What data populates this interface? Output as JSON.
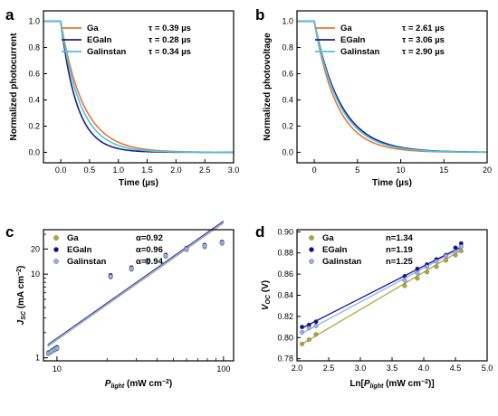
{
  "colors": {
    "ga": "#E8763A",
    "egain": "#1B1F8A",
    "galinstan": "#4FC3D9",
    "ga_c": "#B5A53B",
    "egain_c": "#0E0E9E",
    "galinstan_c": "#8FB2F0"
  },
  "chart_data": [
    {
      "panel_label": "a",
      "type": "line",
      "xlabel": "Time (µs)",
      "ylabel": "Normalized photocurrent",
      "xlim": [
        -0.3,
        3.0
      ],
      "ylim": [
        -0.08,
        1.08
      ],
      "xticks": [
        0.0,
        0.5,
        1.0,
        1.5,
        2.0,
        2.5,
        3.0
      ],
      "xtick_labels": [
        "0.0",
        "0.5",
        "1.0",
        "1.5",
        "2.0",
        "2.5",
        "3.0"
      ],
      "yticks": [
        0.0,
        0.2,
        0.4,
        0.6,
        0.8,
        1.0
      ],
      "ytick_labels": [
        "0.0",
        "0.2",
        "0.4",
        "0.6",
        "0.8",
        "1.0"
      ],
      "plateau_start": -0.3,
      "decay_start": 0.0,
      "series": [
        {
          "name": "Ga",
          "tau_label": "τ = 0.39 µs",
          "tau": 0.39,
          "color": "#E8763A"
        },
        {
          "name": "EGaIn",
          "tau_label": "τ = 0.28 µs",
          "tau": 0.28,
          "color": "#1B1F8A"
        },
        {
          "name": "Galinstan",
          "tau_label": "τ = 0.34 µs",
          "tau": 0.34,
          "color": "#4FC3D9"
        }
      ]
    },
    {
      "panel_label": "b",
      "type": "line",
      "xlabel": "Time (µs)",
      "ylabel": "Normalized photovoltage",
      "xlim": [
        -2,
        20
      ],
      "ylim": [
        -0.08,
        1.08
      ],
      "xticks": [
        0,
        5,
        10,
        15,
        20
      ],
      "xtick_labels": [
        "0",
        "5",
        "10",
        "15",
        "20"
      ],
      "yticks": [
        0.0,
        0.2,
        0.4,
        0.6,
        0.8,
        1.0
      ],
      "ytick_labels": [
        "0.0",
        "0.2",
        "0.4",
        "0.6",
        "0.8",
        "1.0"
      ],
      "plateau_start": -2,
      "decay_start": 0,
      "series": [
        {
          "name": "Ga",
          "tau_label": "τ = 2.61 µs",
          "tau": 2.61,
          "color": "#E8763A"
        },
        {
          "name": "EGaIn",
          "tau_label": "τ = 3.06 µs",
          "tau": 3.06,
          "color": "#1B1F8A"
        },
        {
          "name": "Galinstan",
          "tau_label": "τ = 2.90 µs",
          "tau": 2.9,
          "color": "#4FC3D9"
        }
      ]
    },
    {
      "panel_label": "c",
      "type": "scatter",
      "log_log": true,
      "xlabel_main": "P",
      "xlabel_sub": "light",
      "xlabel_unit": " (mW cm",
      "xlabel_sup": "−2",
      "xlabel_end": ")",
      "ylabel_main": "J",
      "ylabel_sub": "SC",
      "ylabel_unit": " (mA cm",
      "ylabel_sup": "−2",
      "ylabel_end": ")",
      "xlim": [
        8.3,
        115
      ],
      "ylim": [
        0.92,
        34
      ],
      "xticks": [
        10,
        100
      ],
      "xtick_labels": [
        "10",
        "100"
      ],
      "yticks": [
        1,
        10,
        20
      ],
      "ytick_labels": [
        "1",
        "10",
        "20"
      ],
      "series": [
        {
          "name": "Ga",
          "fit_label": "α=0.92",
          "color": "#B5A53B",
          "x": [
            8.9,
            9.3,
            9.7,
            10.0,
            21,
            28,
            35,
            45,
            60,
            77,
            98
          ],
          "y": [
            1.12,
            1.18,
            1.24,
            1.28,
            9.2,
            11.4,
            13.8,
            16.3,
            19.6,
            21.2,
            23.3
          ]
        },
        {
          "name": "EGaIn",
          "fit_label": "α=0.96",
          "color": "#0E0E9E",
          "x": [
            8.9,
            9.3,
            9.7,
            10.0,
            21,
            28,
            35,
            45,
            60,
            77,
            98
          ],
          "y": [
            1.16,
            1.22,
            1.29,
            1.34,
            9.7,
            12.0,
            14.6,
            17.0,
            20.5,
            22.3,
            24.3
          ]
        },
        {
          "name": "Galinstan",
          "fit_label": "α=0.94",
          "color": "#8FB2F0",
          "x": [
            8.9,
            9.3,
            9.7,
            10.0,
            21,
            28,
            35,
            45,
            60,
            77,
            98
          ],
          "y": [
            1.14,
            1.2,
            1.26,
            1.31,
            9.4,
            11.7,
            14.2,
            16.6,
            20.0,
            21.8,
            23.8
          ]
        }
      ]
    },
    {
      "panel_label": "d",
      "type": "scatter",
      "xlabel_main": "Ln[",
      "xlabel_p": "P",
      "xlabel_sub": "light",
      "xlabel_unit": " (mW cm",
      "xlabel_sup": "−2",
      "xlabel_end": ")]",
      "ylabel_main": "V",
      "ylabel_sub": "OC",
      "ylabel_unit": " (V)",
      "xlim": [
        2.0,
        5.0
      ],
      "ylim": [
        0.778,
        0.902
      ],
      "xticks": [
        2.0,
        2.5,
        3.0,
        3.5,
        4.0,
        4.5,
        5.0
      ],
      "xtick_labels": [
        "2.0",
        "2.5",
        "3.0",
        "3.5",
        "4.0",
        "4.5",
        "5.0"
      ],
      "yticks": [
        0.78,
        0.8,
        0.82,
        0.84,
        0.86,
        0.88,
        0.9
      ],
      "ytick_labels": [
        "0.78",
        "0.80",
        "0.82",
        "0.84",
        "0.86",
        "0.88",
        "0.90"
      ],
      "series": [
        {
          "name": "Ga",
          "fit_label": "n=1.34",
          "color": "#B5A53B",
          "x": [
            2.08,
            2.19,
            2.3,
            3.7,
            3.9,
            4.05,
            4.2,
            4.35,
            4.5,
            4.59
          ],
          "y": [
            0.794,
            0.798,
            0.803,
            0.849,
            0.856,
            0.862,
            0.867,
            0.873,
            0.878,
            0.882
          ],
          "fit": [
            [
              2.08,
              0.794
            ],
            [
              4.6,
              0.883
            ]
          ]
        },
        {
          "name": "EGaIn",
          "fit_label": "n=1.19",
          "color": "#0E0E9E",
          "x": [
            2.08,
            2.19,
            2.3,
            3.7,
            3.9,
            4.05,
            4.2,
            4.35,
            4.5,
            4.59
          ],
          "y": [
            0.81,
            0.812,
            0.815,
            0.858,
            0.865,
            0.869,
            0.874,
            0.878,
            0.885,
            0.889
          ],
          "fit": [
            [
              2.08,
              0.809
            ],
            [
              4.6,
              0.886
            ]
          ]
        },
        {
          "name": "Galinstan",
          "fit_label": "n=1.25",
          "color": "#8FB2F0",
          "x": [
            2.08,
            2.19,
            2.3,
            3.7,
            3.9,
            4.05,
            4.2,
            4.35,
            4.5,
            4.59
          ],
          "y": [
            0.805,
            0.809,
            0.811,
            0.854,
            0.861,
            0.867,
            0.872,
            0.877,
            0.881,
            0.886
          ],
          "fit": [
            [
              2.08,
              0.804
            ],
            [
              4.6,
              0.885
            ]
          ]
        }
      ]
    }
  ]
}
